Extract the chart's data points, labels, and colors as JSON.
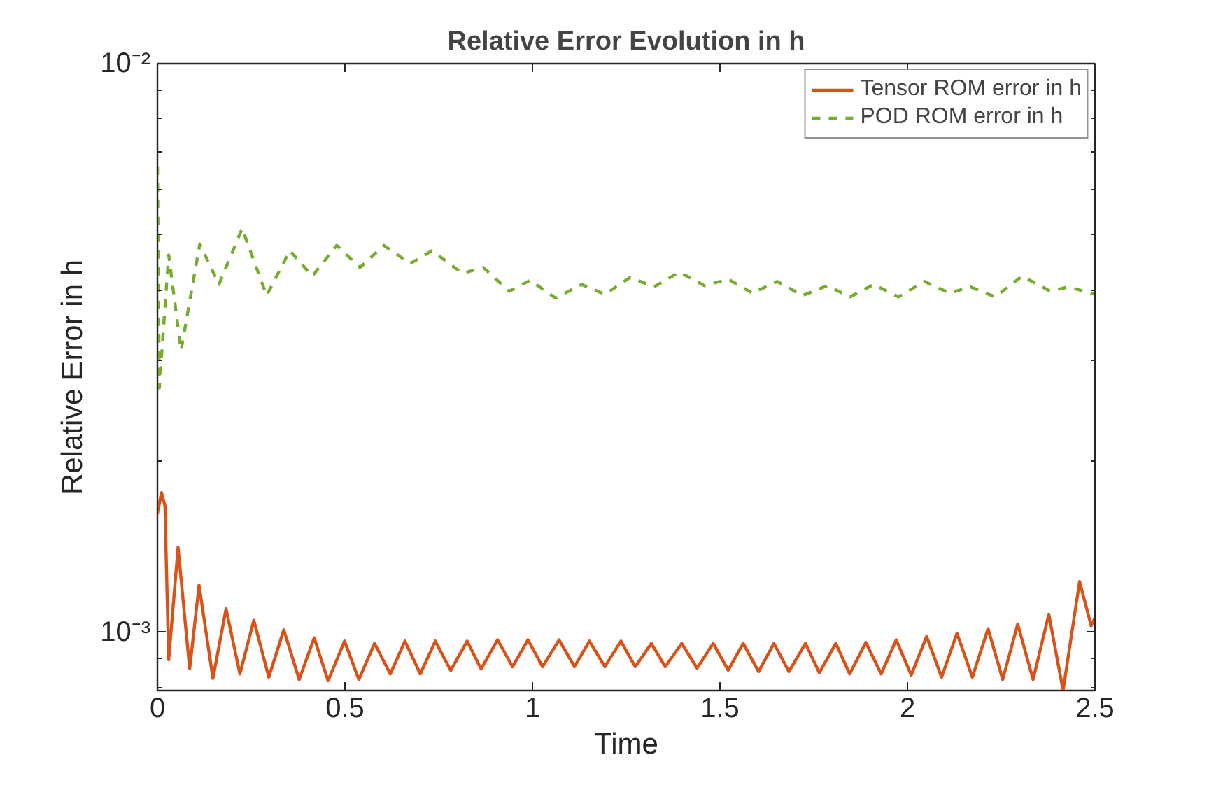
{
  "chart_data": {
    "type": "line",
    "title": "Relative Error Evolution in h",
    "xlabel": "Time",
    "ylabel": "Relative Error in h",
    "log": "y",
    "xlim": [
      0,
      2.5
    ],
    "ylim": [
      0.00079,
      0.01
    ],
    "xticks": [
      0,
      0.5,
      1,
      1.5,
      2,
      2.5
    ],
    "yticks": [
      {
        "value": 0.001,
        "label": "10⁻³"
      },
      {
        "value": 0.01,
        "label": "10⁻²"
      }
    ],
    "grid": false,
    "legend": "top right",
    "series": [
      {
        "name": "Tensor ROM error in h",
        "color": "#d95319",
        "line_style": "solid",
        "x": [
          0,
          0.011,
          0.02,
          0.03,
          0.055,
          0.086,
          0.111,
          0.148,
          0.183,
          0.22,
          0.257,
          0.297,
          0.337,
          0.378,
          0.418,
          0.455,
          0.499,
          0.537,
          0.579,
          0.621,
          0.66,
          0.701,
          0.741,
          0.782,
          0.826,
          0.863,
          0.907,
          0.947,
          0.988,
          1.027,
          1.071,
          1.112,
          1.152,
          1.193,
          1.236,
          1.274,
          1.317,
          1.354,
          1.398,
          1.439,
          1.482,
          1.522,
          1.562,
          1.603,
          1.644,
          1.684,
          1.728,
          1.765,
          1.809,
          1.846,
          1.889,
          1.93,
          1.97,
          2.01,
          2.051,
          2.091,
          2.132,
          2.173,
          2.215,
          2.254,
          2.294,
          2.335,
          2.377,
          2.415,
          2.459,
          2.49,
          2.5
        ],
        "values": [
          0.00162,
          0.00176,
          0.00167,
          0.000895,
          0.00141,
          0.000863,
          0.00121,
          0.00083,
          0.0011,
          0.000845,
          0.00105,
          0.000834,
          0.00101,
          0.000826,
          0.000978,
          0.000822,
          0.000965,
          0.000826,
          0.000956,
          0.000845,
          0.000965,
          0.000845,
          0.000965,
          0.000857,
          0.000965,
          0.000862,
          0.00097,
          0.00087,
          0.00097,
          0.00087,
          0.00097,
          0.00087,
          0.000965,
          0.00087,
          0.000965,
          0.00087,
          0.000956,
          0.00087,
          0.000956,
          0.000865,
          0.000956,
          0.000858,
          0.000956,
          0.000853,
          0.000956,
          0.000853,
          0.000956,
          0.000849,
          0.000956,
          0.000845,
          0.00096,
          0.000845,
          0.00097,
          0.000841,
          0.000983,
          0.000834,
          0.000996,
          0.000834,
          0.001015,
          0.000826,
          0.001034,
          0.000826,
          0.001076,
          0.00079,
          0.001228,
          0.001027,
          0.00106
        ]
      },
      {
        "name": "POD ROM error in h",
        "color": "#77ac30",
        "line_style": "dashed",
        "x": [
          0,
          0.005,
          0.03,
          0.063,
          0.113,
          0.164,
          0.226,
          0.291,
          0.353,
          0.413,
          0.478,
          0.54,
          0.604,
          0.674,
          0.732,
          0.813,
          0.869,
          0.938,
          0.994,
          1.062,
          1.131,
          1.193,
          1.261,
          1.324,
          1.392,
          1.459,
          1.522,
          1.586,
          1.653,
          1.72,
          1.786,
          1.847,
          1.91,
          1.976,
          2.045,
          2.112,
          2.168,
          2.234,
          2.306,
          2.381,
          2.429,
          2.5
        ],
        "values": [
          0.0066,
          0.00269,
          0.00461,
          0.00313,
          0.00482,
          0.00409,
          0.00513,
          0.00391,
          0.00469,
          0.00423,
          0.00479,
          0.00438,
          0.00479,
          0.00445,
          0.00469,
          0.00428,
          0.00438,
          0.00398,
          0.00416,
          0.00387,
          0.00409,
          0.00393,
          0.00421,
          0.00405,
          0.0043,
          0.00407,
          0.00418,
          0.00395,
          0.00414,
          0.00391,
          0.00407,
          0.00389,
          0.00409,
          0.00389,
          0.00414,
          0.00395,
          0.00405,
          0.00389,
          0.00423,
          0.00398,
          0.00405,
          0.00393
        ]
      }
    ]
  }
}
